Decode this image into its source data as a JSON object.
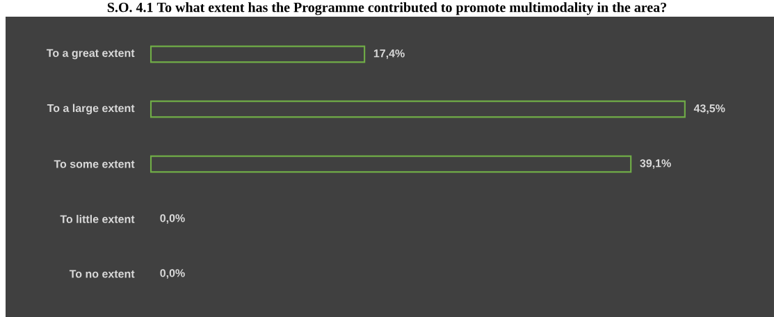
{
  "chart_data": {
    "type": "bar",
    "orientation": "horizontal",
    "title": "S.O. 4.1 To what extent has the Programme contributed to promote multimodality in the area?",
    "categories": [
      "To a great extent",
      "To a large extent",
      "To some extent",
      "To little extent",
      "To no extent"
    ],
    "values": [
      17.4,
      43.5,
      39.1,
      0.0,
      0.0
    ],
    "value_labels": [
      "17,4%",
      "43,5%",
      "39,1%",
      "0,0%",
      "0,0%"
    ],
    "color": "#70ad47"
  }
}
